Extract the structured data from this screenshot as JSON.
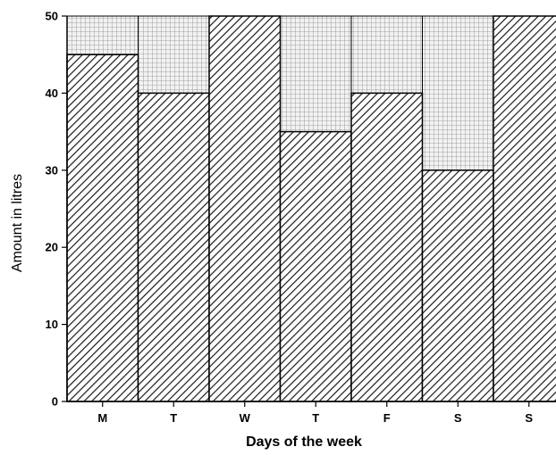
{
  "chart_data": {
    "type": "bar",
    "categories": [
      "M",
      "T",
      "W",
      "T",
      "F",
      "S",
      "S"
    ],
    "values": [
      45,
      40,
      50,
      35,
      40,
      30,
      50
    ],
    "capacity": 50,
    "ylim": [
      0,
      50
    ],
    "yticks": [
      0,
      10,
      20,
      30,
      40,
      50
    ],
    "xlabel": "Days of the week",
    "ylabel": "Amount in litres",
    "grid": false
  }
}
